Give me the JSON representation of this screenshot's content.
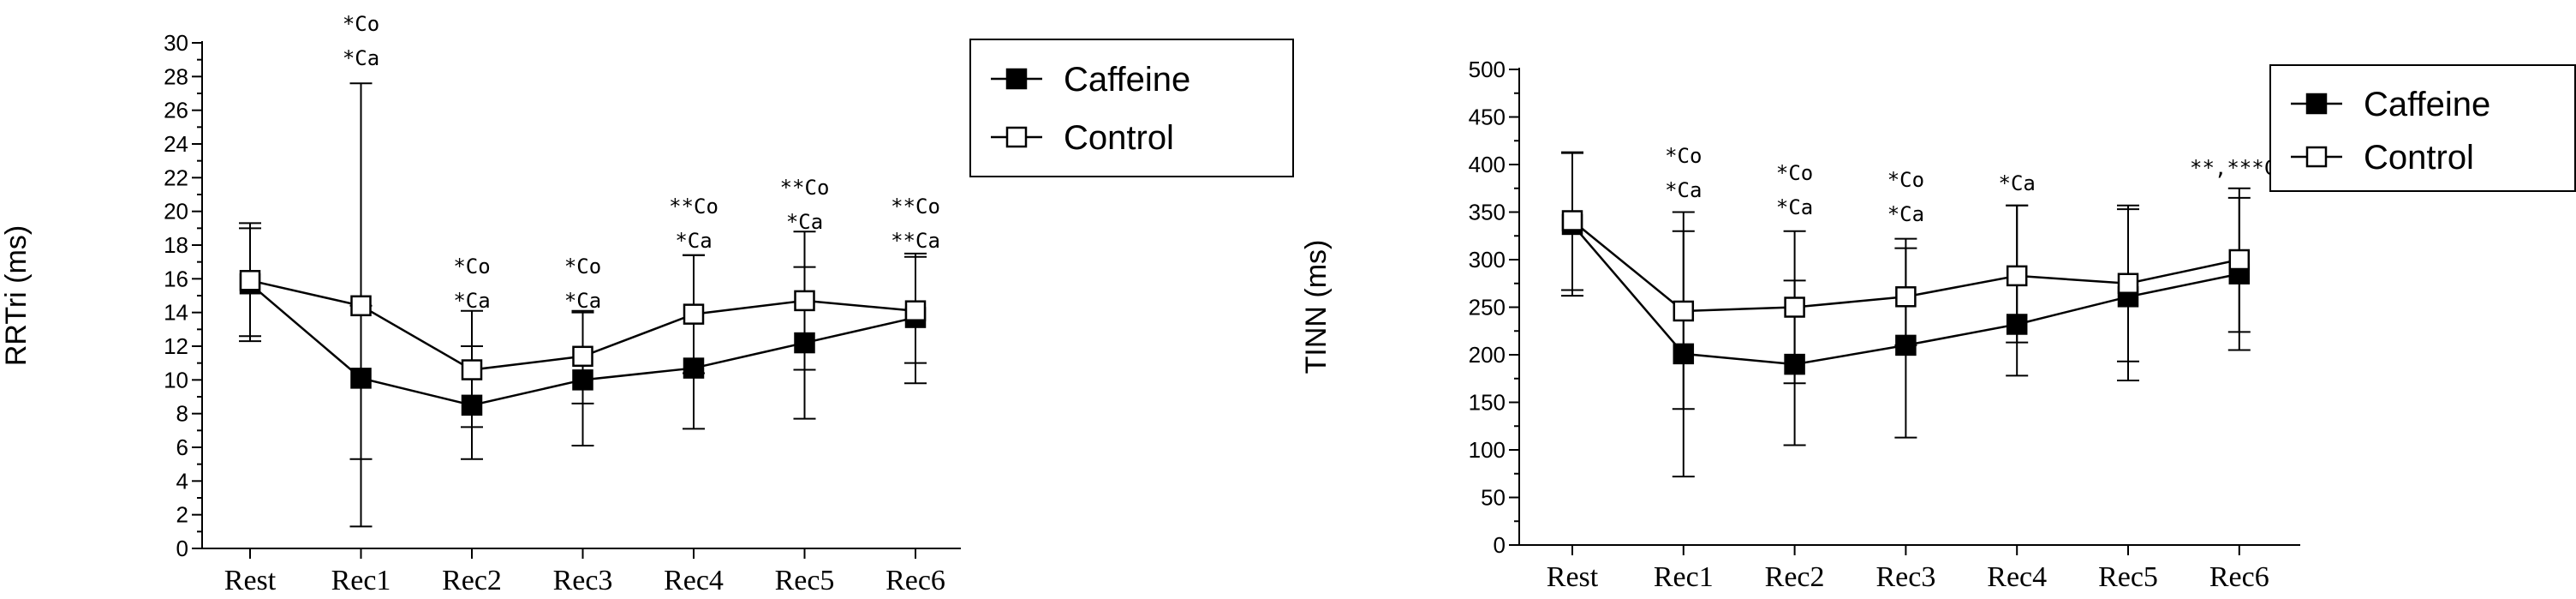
{
  "chart_data": [
    {
      "type": "line",
      "ylabel": "RRTri (ms)",
      "xlabel": "",
      "categories": [
        "Rest",
        "Rec1",
        "Rec2",
        "Rec3",
        "Rec4",
        "Rec5",
        "Rec6"
      ],
      "ylim": [
        0,
        30
      ],
      "yticks": [
        0,
        2,
        4,
        6,
        8,
        10,
        12,
        14,
        16,
        18,
        20,
        22,
        24,
        26,
        28,
        30
      ],
      "grid": false,
      "legend_position": "top-right",
      "series": [
        {
          "name": "Caffeine",
          "marker": "filled-square",
          "values": [
            15.7,
            10.1,
            8.5,
            10.0,
            10.7,
            12.2,
            13.7
          ],
          "err_upper": [
            19.3,
            27.6,
            12.0,
            14.0,
            17.4,
            16.7,
            17.3
          ],
          "err_lower": [
            12.3,
            1.3,
            5.3,
            6.1,
            7.1,
            7.7,
            9.8
          ]
        },
        {
          "name": "Control",
          "marker": "open-square",
          "values": [
            15.9,
            14.4,
            10.6,
            11.4,
            13.9,
            14.7,
            14.1
          ],
          "err_upper": [
            19.0,
            14.4,
            14.1,
            14.1,
            17.4,
            18.8,
            17.5
          ],
          "err_lower": [
            12.6,
            5.3,
            7.2,
            8.6,
            10.4,
            10.6,
            11.0
          ]
        }
      ],
      "annotations": [
        {
          "x": "Rec1",
          "lines": [
            "*Co",
            "*Ca"
          ]
        },
        {
          "x": "Rec2",
          "lines": [
            "*Co",
            "*Ca"
          ]
        },
        {
          "x": "Rec3",
          "lines": [
            "*Co",
            "*Ca"
          ]
        },
        {
          "x": "Rec4",
          "lines": [
            "**Co",
            "*Ca"
          ]
        },
        {
          "x": "Rec5",
          "lines": [
            "**Co",
            "*Ca"
          ]
        },
        {
          "x": "Rec6",
          "lines": [
            "**Co",
            "**Ca"
          ]
        }
      ]
    },
    {
      "type": "line",
      "ylabel": "TINN (ms)",
      "xlabel": "",
      "categories": [
        "Rest",
        "Rec1",
        "Rec2",
        "Rec3",
        "Rec4",
        "Rec5",
        "Rec6"
      ],
      "ylim": [
        0,
        500
      ],
      "yticks": [
        0,
        50,
        100,
        150,
        200,
        250,
        300,
        350,
        400,
        450,
        500
      ],
      "grid": false,
      "legend_position": "top-right",
      "series": [
        {
          "name": "Caffeine",
          "marker": "filled-square",
          "values": [
            337,
            201,
            190,
            210,
            232,
            261,
            285
          ],
          "err_upper": [
            412,
            330,
            330,
            312,
            357,
            357,
            375
          ],
          "err_lower": [
            262,
            72,
            105,
            113,
            178,
            173,
            205
          ]
        },
        {
          "name": "Control",
          "marker": "open-square",
          "values": [
            341,
            246,
            250,
            261,
            283,
            275,
            300
          ],
          "err_upper": [
            413,
            350,
            278,
            322,
            357,
            353,
            365
          ],
          "err_lower": [
            268,
            143,
            170,
            210,
            213,
            193,
            224
          ]
        }
      ],
      "annotations": [
        {
          "x": "Rec1",
          "lines": [
            "*Co",
            "*Ca"
          ]
        },
        {
          "x": "Rec2",
          "lines": [
            "*Co",
            "*Ca"
          ]
        },
        {
          "x": "Rec3",
          "lines": [
            "*Co",
            "*Ca"
          ]
        },
        {
          "x": "Rec4",
          "lines": [
            "*Ca"
          ]
        },
        {
          "x": "Rec6",
          "lines": [
            "**,***Ca"
          ]
        }
      ]
    }
  ]
}
